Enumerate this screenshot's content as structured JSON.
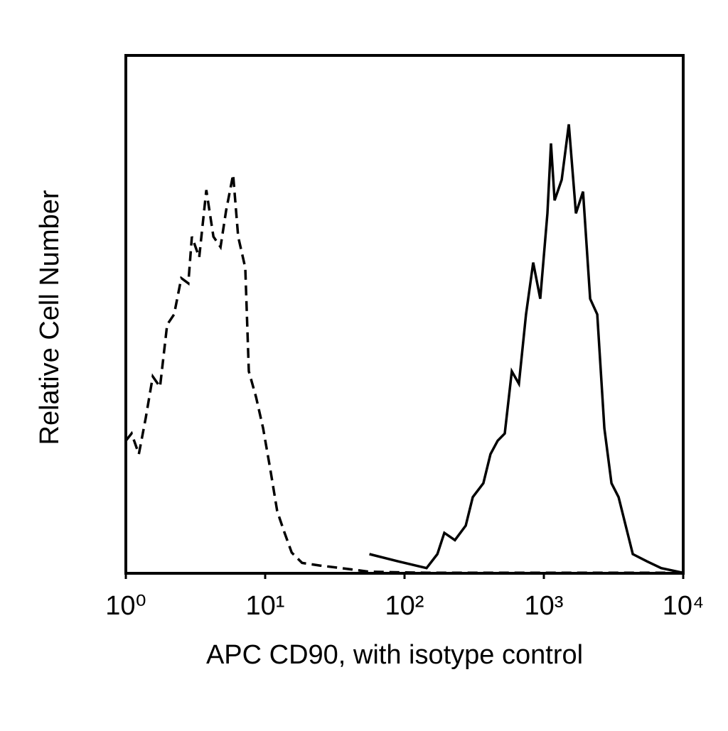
{
  "chart_data": {
    "type": "line",
    "xlabel": "APC CD90, with isotype control",
    "ylabel": "Relative Cell Number",
    "xscale": "log",
    "xlim": [
      1,
      10000
    ],
    "xticks": [
      {
        "value": 1,
        "label": "10⁰"
      },
      {
        "value": 10,
        "label": "10¹"
      },
      {
        "value": 100,
        "label": "10²"
      },
      {
        "value": 1000,
        "label": "10³"
      },
      {
        "value": 10000,
        "label": "10⁴"
      }
    ],
    "ylim": [
      0,
      100
    ],
    "series": [
      {
        "color": "#000000",
        "line_style": "dashed",
        "x": [
          1,
          1.1,
          1.24,
          1.39,
          1.56,
          1.76,
          1.98,
          2.22,
          2.5,
          2.81,
          2.98,
          3.36,
          3.78,
          4.25,
          4.78,
          5.24,
          5.89,
          6.4,
          7.2,
          7.63,
          8.6,
          9.66,
          10.9,
          12.2,
          13.7,
          15.5,
          18.4,
          24.7,
          35.2,
          56,
          144,
          466,
          1510,
          7810
        ],
        "values": [
          25.6,
          27,
          23,
          30,
          38,
          36,
          48,
          50,
          57,
          56,
          65,
          61,
          74,
          65,
          63,
          70,
          77,
          65,
          59,
          39,
          34,
          28,
          20,
          12,
          8,
          4,
          2,
          1.5,
          1,
          0.3,
          0.1,
          0.1,
          0.1,
          0.1
        ]
      },
      {
        "color": "#000000",
        "line_style": "solid",
        "x": [
          56,
          90,
          144,
          172,
          193,
          230,
          275,
          309,
          368,
          414,
          466,
          524,
          589,
          662,
          745,
          838,
          942,
          1060,
          1125,
          1194,
          1343,
          1510,
          1698,
          1910,
          2148,
          2415,
          2716,
          3055,
          3436,
          3864,
          4346,
          5495,
          6950,
          10000
        ],
        "values": [
          3.7,
          2.3,
          1,
          3.7,
          7.8,
          6.4,
          9.2,
          14.7,
          17.4,
          23,
          25.6,
          27,
          39,
          36.6,
          50,
          60,
          53,
          69.5,
          83,
          72,
          76,
          86.7,
          69.5,
          73.7,
          53,
          50,
          28,
          17.4,
          14.7,
          9.2,
          3.7,
          2.3,
          1,
          0.1
        ]
      }
    ]
  }
}
